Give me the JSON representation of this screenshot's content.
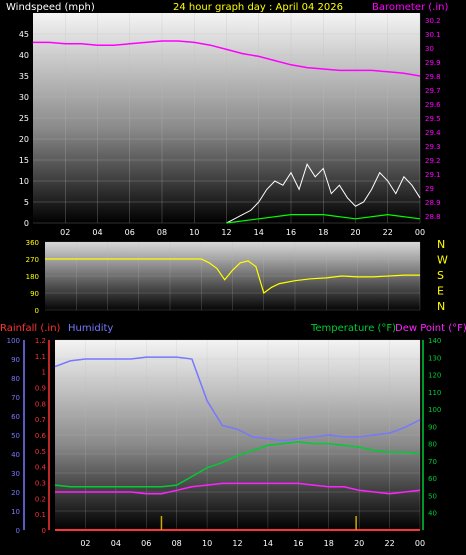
{
  "header": {
    "left": "Windspeed (mph)",
    "center": "24 hour graph day : April 04 2026",
    "right": "Barometer (.in)"
  },
  "bottom_header": {
    "rainfall": "Rainfall (.in)",
    "humidity": "Humidity",
    "temperature": "Temperature (°F)",
    "dewpoint": "Dew Point (°F)"
  },
  "colors": {
    "background": "#000000",
    "wind": "#ffffff",
    "gust_green": "#00ff00",
    "barometer": "#ff00ff",
    "direction": "#ffff00",
    "humidity": "#7777ff",
    "temperature": "#00cc33",
    "dewpoint": "#ff22ff",
    "rainfall": "#ff3333",
    "rain_bar": "#ccaa00",
    "axis_text": "#ffffff"
  },
  "chart_data": [
    {
      "type": "line",
      "title": "24 hour graph day : April 04 2026",
      "x_ticks": [
        "02",
        "04",
        "06",
        "08",
        "10",
        "12",
        "14",
        "16",
        "18",
        "20",
        "22",
        "00"
      ],
      "xlim": [
        0,
        24
      ],
      "y_left": {
        "label": "Windspeed (mph)",
        "ticks": [
          "0",
          "5",
          "10",
          "15",
          "20",
          "25",
          "30",
          "35",
          "40",
          "45"
        ],
        "ylim": [
          0,
          50
        ]
      },
      "y_right": {
        "label": "Barometer (.in)",
        "ticks": [
          "28.8",
          "28.9",
          "29",
          "29.1",
          "29.2",
          "29.3",
          "29.4",
          "29.5",
          "29.6",
          "29.7",
          "29.8",
          "29.9",
          "30",
          "30.1",
          "30.2"
        ],
        "ylim": [
          28.75,
          30.25
        ]
      },
      "series": [
        {
          "name": "Barometer (.in)",
          "axis": "right",
          "x": [
            0,
            1,
            2,
            3,
            4,
            5,
            6,
            7,
            8,
            9,
            10,
            11,
            12,
            13,
            14,
            15,
            16,
            17,
            18,
            19,
            20,
            21,
            22,
            23,
            24
          ],
          "values": [
            30.04,
            30.04,
            30.03,
            30.03,
            30.02,
            30.02,
            30.03,
            30.04,
            30.05,
            30.05,
            30.04,
            30.02,
            29.99,
            29.96,
            29.94,
            29.91,
            29.88,
            29.86,
            29.85,
            29.84,
            29.84,
            29.84,
            29.83,
            29.82,
            29.8
          ]
        },
        {
          "name": "Windspeed (mph)",
          "axis": "left",
          "x": [
            12,
            12.5,
            13,
            13.5,
            14,
            14.5,
            15,
            15.5,
            16,
            16.5,
            17,
            17.5,
            18,
            18.5,
            19,
            19.5,
            20,
            20.5,
            21,
            21.5,
            22,
            22.5,
            23,
            23.5,
            24
          ],
          "values": [
            0,
            1,
            2,
            3,
            5,
            8,
            10,
            9,
            12,
            8,
            14,
            11,
            13,
            7,
            9,
            6,
            4,
            5,
            8,
            12,
            10,
            7,
            11,
            9,
            6
          ]
        },
        {
          "name": "Gust",
          "axis": "left",
          "x": [
            12,
            14,
            16,
            18,
            20,
            22,
            24
          ],
          "values": [
            0,
            1,
            2,
            2,
            1,
            2,
            1
          ]
        }
      ]
    },
    {
      "type": "line",
      "x_ticks": [],
      "xlim": [
        0,
        24
      ],
      "y_left": {
        "label": "",
        "ticks": [
          "0",
          "90",
          "180",
          "270",
          "360"
        ],
        "ylim": [
          0,
          360
        ]
      },
      "y_right": {
        "label": "",
        "ticks": [
          "N",
          "W",
          "S",
          "E",
          "N"
        ]
      },
      "series": [
        {
          "name": "Wind direction",
          "axis": "left",
          "x": [
            0,
            2,
            4,
            6,
            8,
            10,
            10.5,
            11,
            11.5,
            12,
            12.5,
            13,
            13.5,
            14,
            14.5,
            15,
            16,
            17,
            18,
            19,
            20,
            21,
            22,
            23,
            24
          ],
          "values": [
            270,
            270,
            270,
            270,
            270,
            270,
            250,
            220,
            160,
            210,
            250,
            260,
            230,
            90,
            120,
            140,
            155,
            165,
            170,
            180,
            175,
            175,
            180,
            185,
            185
          ]
        }
      ]
    },
    {
      "type": "line",
      "x_ticks": [
        "02",
        "04",
        "06",
        "08",
        "10",
        "12",
        "14",
        "16",
        "18",
        "20",
        "22",
        "00"
      ],
      "xlim": [
        0,
        24
      ],
      "y_humidity": {
        "label": "Humidity",
        "ticks": [
          "0",
          "10",
          "20",
          "30",
          "40",
          "50",
          "60",
          "70",
          "80",
          "90",
          "100"
        ],
        "ylim": [
          0,
          100
        ]
      },
      "y_rain": {
        "label": "Rainfall (.in)",
        "ticks": [
          "0",
          "0.1",
          "0.2",
          "0.3",
          "0.4",
          "0.5",
          "0.6",
          "0.7",
          "0.8",
          "0.9",
          "1",
          "1.1",
          "1.2"
        ],
        "ylim": [
          0,
          1.2
        ]
      },
      "y_temp": {
        "label": "Temperature (°F)",
        "ticks": [
          "40",
          "50",
          "60",
          "70",
          "80",
          "90",
          "100",
          "110",
          "120",
          "130",
          "140"
        ],
        "ylim": [
          30,
          140
        ]
      },
      "series": [
        {
          "name": "Humidity",
          "axis": "humidity",
          "x": [
            0,
            1,
            2,
            3,
            4,
            5,
            6,
            7,
            8,
            9,
            10,
            11,
            12,
            13,
            14,
            15,
            16,
            17,
            18,
            19,
            20,
            21,
            22,
            23,
            24
          ],
          "values": [
            86,
            89,
            90,
            90,
            90,
            90,
            91,
            91,
            91,
            90,
            68,
            55,
            53,
            49,
            48,
            47,
            48,
            49,
            50,
            49,
            49,
            50,
            51,
            54,
            58
          ]
        },
        {
          "name": "Temperature (°F)",
          "axis": "temp",
          "x": [
            0,
            1,
            2,
            3,
            4,
            5,
            6,
            7,
            8,
            9,
            10,
            11,
            12,
            13,
            14,
            15,
            16,
            17,
            18,
            19,
            20,
            21,
            22,
            23,
            24
          ],
          "values": [
            56,
            55,
            55,
            55,
            55,
            55,
            55,
            55,
            56,
            61,
            66,
            69,
            73,
            76,
            79,
            80,
            81,
            80,
            80,
            79,
            78,
            76,
            75,
            75,
            74
          ]
        },
        {
          "name": "Dew Point (°F)",
          "axis": "temp",
          "x": [
            0,
            1,
            2,
            3,
            4,
            5,
            6,
            7,
            8,
            9,
            10,
            11,
            12,
            13,
            14,
            15,
            16,
            17,
            18,
            19,
            20,
            21,
            22,
            23,
            24
          ],
          "values": [
            52,
            52,
            52,
            52,
            52,
            52,
            51,
            51,
            53,
            55,
            56,
            57,
            57,
            57,
            57,
            57,
            57,
            56,
            55,
            55,
            53,
            52,
            51,
            52,
            53
          ]
        },
        {
          "name": "Rainfall (.in)",
          "axis": "rain",
          "x": [
            0,
            24
          ],
          "values": [
            0.0,
            0.0
          ]
        }
      ],
      "rain_marks_x": [
        7,
        19.8
      ]
    }
  ]
}
